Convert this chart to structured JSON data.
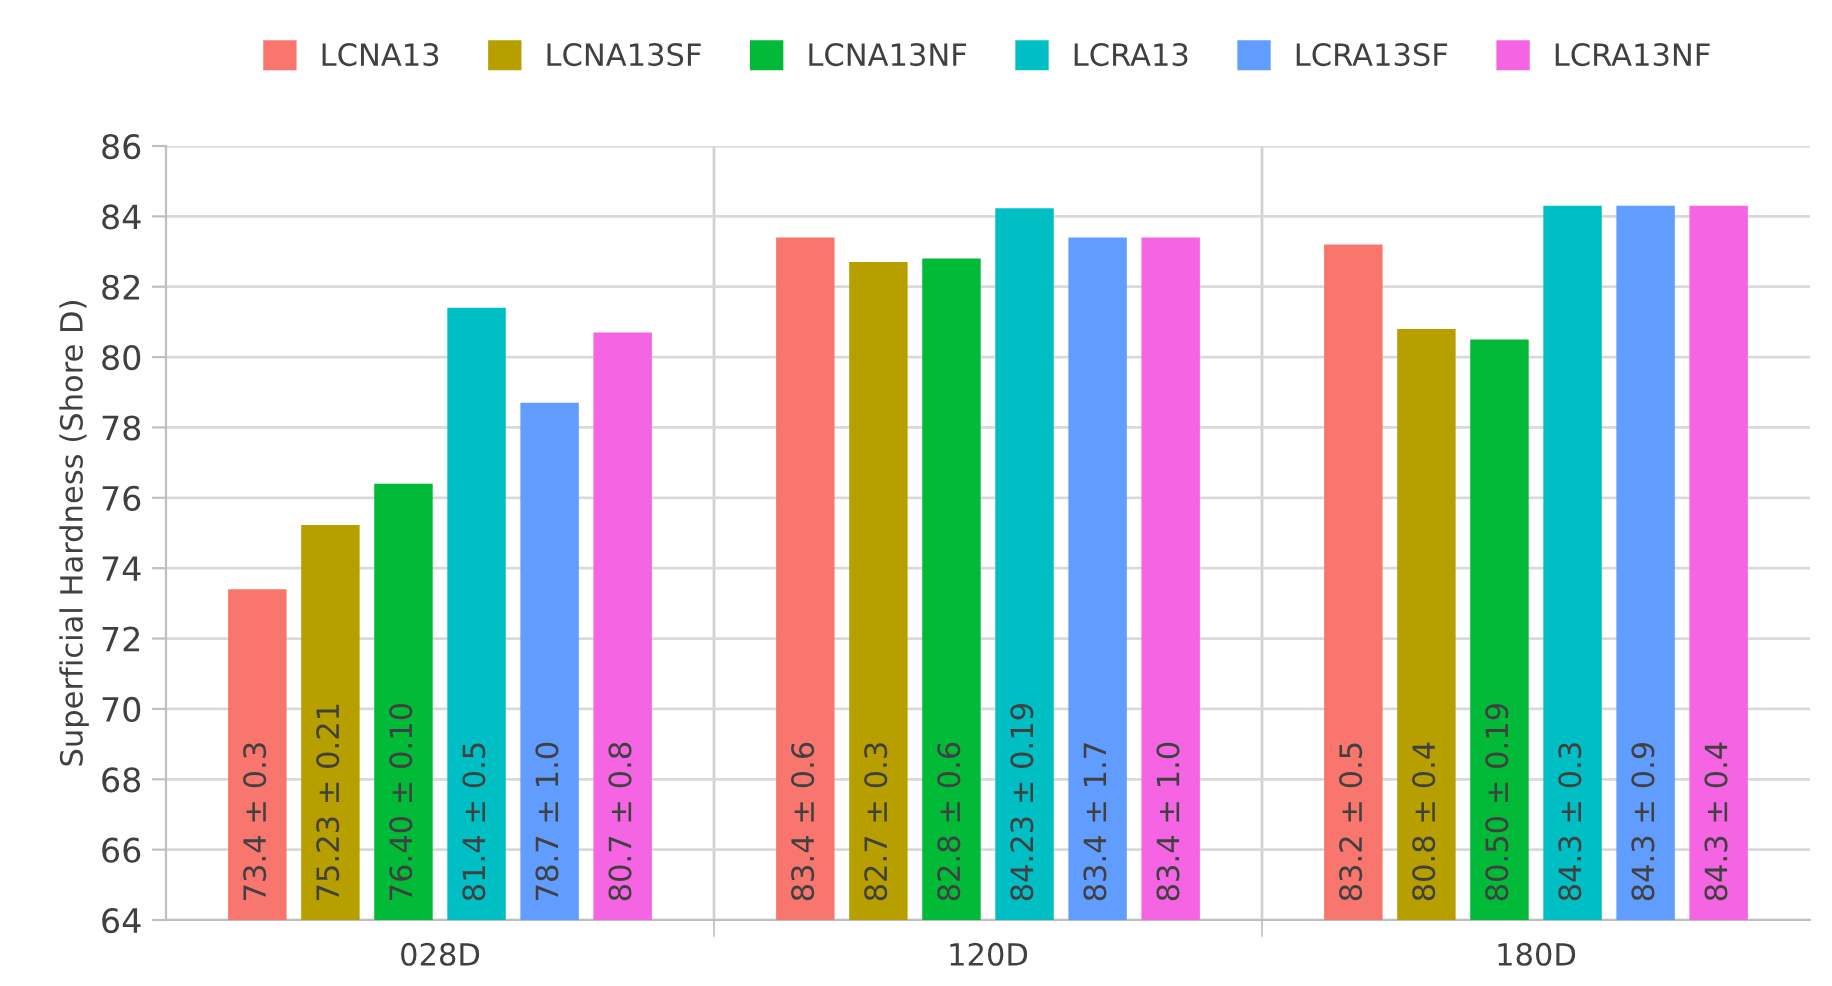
{
  "chart_data": {
    "type": "bar",
    "ylabel": "Superficial Hardness (Shore D)",
    "categories": [
      "028D",
      "120D",
      "180D"
    ],
    "series": [
      {
        "name": "LCNA13",
        "color": "#f8766d",
        "values": [
          73.4,
          83.4,
          83.2
        ],
        "value_labels": [
          "73.4 ± 0.3",
          "83.4 ± 0.6",
          "83.2 ± 0.5"
        ]
      },
      {
        "name": "LCNA13SF",
        "color": "#b79f00",
        "values": [
          75.23,
          82.7,
          80.8
        ],
        "value_labels": [
          "75.23 ± 0.21",
          "82.7 ± 0.3",
          "80.8 ± 0.4"
        ]
      },
      {
        "name": "LCNA13NF",
        "color": "#00ba38",
        "values": [
          76.4,
          82.8,
          80.5
        ],
        "value_labels": [
          "76.40 ± 0.10",
          "82.8 ± 0.6",
          "80.50 ± 0.19"
        ]
      },
      {
        "name": "LCRA13",
        "color": "#00bfc4",
        "values": [
          81.4,
          84.23,
          84.3
        ],
        "value_labels": [
          "81.4 ± 0.5",
          "84.23 ± 0.19",
          "84.3 ± 0.3"
        ]
      },
      {
        "name": "LCRA13SF",
        "color": "#619cff",
        "values": [
          78.7,
          83.4,
          84.3
        ],
        "value_labels": [
          "78.7 ± 1.0",
          "83.4 ± 1.7",
          "84.3 ± 0.9"
        ]
      },
      {
        "name": "LCRA13NF",
        "color": "#f564e3",
        "values": [
          80.7,
          83.4,
          84.3
        ],
        "value_labels": [
          "80.7 ± 0.8",
          "83.4 ± 1.0",
          "84.3 ± 0.4"
        ]
      }
    ],
    "ylim": [
      64,
      86
    ],
    "yticks": [
      64,
      66,
      68,
      70,
      72,
      74,
      76,
      78,
      80,
      82,
      84,
      86
    ],
    "grid": true,
    "legend": "top"
  }
}
